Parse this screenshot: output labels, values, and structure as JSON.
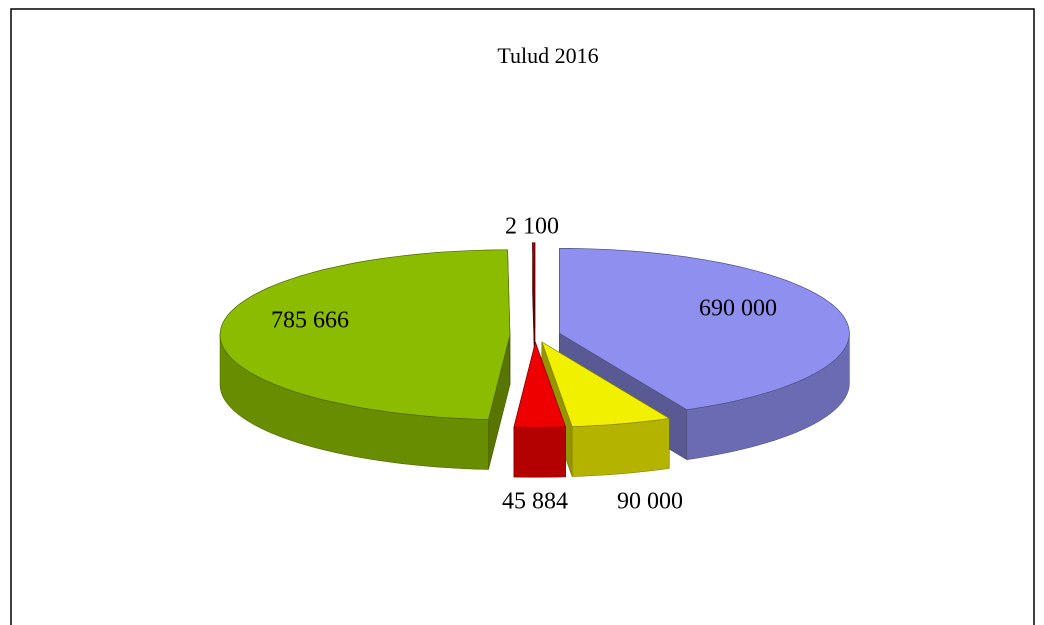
{
  "chart_data": {
    "type": "pie",
    "title": "Tulud 2016",
    "categories": [
      null,
      null,
      null,
      null,
      null
    ],
    "values": [
      690000,
      90000,
      45884,
      785666,
      2100
    ],
    "value_labels": [
      "690 000",
      "90 000",
      "45 884",
      "785 666",
      "2 100"
    ],
    "colors": [
      "#8f8fef",
      "#f0f000",
      "#ee0000",
      "#8cbc00",
      "#a00000"
    ]
  }
}
